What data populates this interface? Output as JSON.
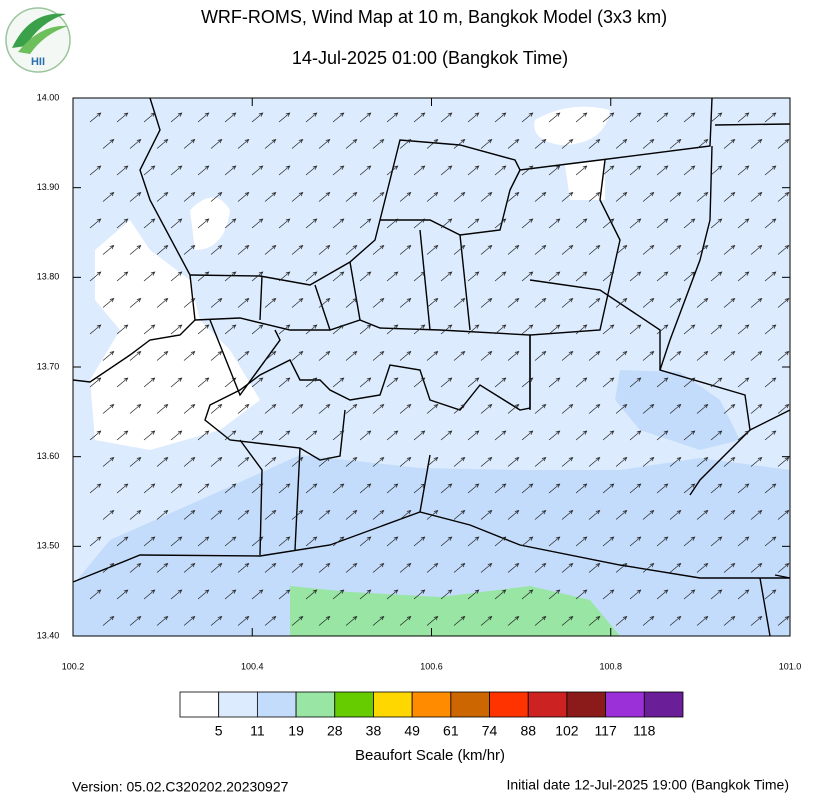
{
  "header": {
    "logo_text": "HII"
  },
  "chart_data": {
    "type": "map",
    "title": "WRF-ROMS, Wind Map at 10 m, Bangkok Model (3x3 km)",
    "subtitle": "14-Jul-2025 01:00 (Bangkok Time)",
    "xlim": [
      100.2,
      101.0
    ],
    "ylim": [
      13.4,
      14.0
    ],
    "xticks": [
      100.2,
      100.4,
      100.6,
      100.8,
      {
        "value": 101.0,
        "label": "101.0"
      }
    ],
    "yticks": [
      {
        "value": 13.4,
        "label": "13.40"
      },
      {
        "value": 13.5,
        "label": "13.50"
      },
      {
        "value": 13.6,
        "label": "13.60"
      },
      {
        "value": 13.7,
        "label": "13.70"
      },
      {
        "value": 13.8,
        "label": "13.80"
      },
      {
        "value": 13.9,
        "label": "13.90"
      },
      {
        "value": 14.0,
        "label": "14.00"
      }
    ],
    "colorbar": {
      "title": "Beaufort Scale (km/hr)",
      "colors": [
        "#ffffff",
        "#dcebfd",
        "#c4dcfb",
        "#98e5a4",
        "#66cc00",
        "#ffd700",
        "#ff8c00",
        "#cc6600",
        "#ff3300",
        "#cc2222",
        "#8b1a1a",
        "#9b30d9",
        "#6a1f99"
      ],
      "levels": [
        5,
        11,
        19,
        28,
        38,
        49,
        61,
        74,
        88,
        102,
        117,
        118
      ]
    }
  },
  "footer": {
    "version": "Version: 05.02.C320202.20230927",
    "initial_date": "Initial date 12-Jul-2025 19:00 (Bangkok Time)"
  }
}
